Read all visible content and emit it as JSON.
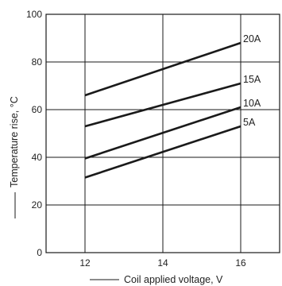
{
  "chart_data": {
    "type": "line",
    "title": "",
    "xlabel": "Coil applied voltage, V",
    "ylabel": "Temperature rise, °C",
    "xlim": [
      11,
      17
    ],
    "ylim": [
      0,
      100
    ],
    "x_ticks": [
      12,
      14,
      16
    ],
    "x_tick_labels": [
      "12",
      "14",
      "16"
    ],
    "x_grid": [
      12,
      14,
      16
    ],
    "y_ticks": [
      0,
      20,
      40,
      60,
      80,
      100
    ],
    "y_tick_labels": [
      "0",
      "20",
      "40",
      "60",
      "80",
      "100"
    ],
    "grid": true,
    "legend": "none",
    "series": [
      {
        "name": "20A",
        "x": [
          12,
          16
        ],
        "y": [
          66,
          88
        ]
      },
      {
        "name": "15A",
        "x": [
          12,
          16
        ],
        "y": [
          53,
          71
        ]
      },
      {
        "name": "10A",
        "x": [
          12,
          16
        ],
        "y": [
          39.5,
          61
        ]
      },
      {
        "name": "5A",
        "x": [
          12,
          16
        ],
        "y": [
          31.5,
          53
        ]
      }
    ],
    "colors": {
      "line": "#1a1a1a",
      "grid": "#1a1a1a",
      "frame": "#1a1a1a"
    }
  }
}
